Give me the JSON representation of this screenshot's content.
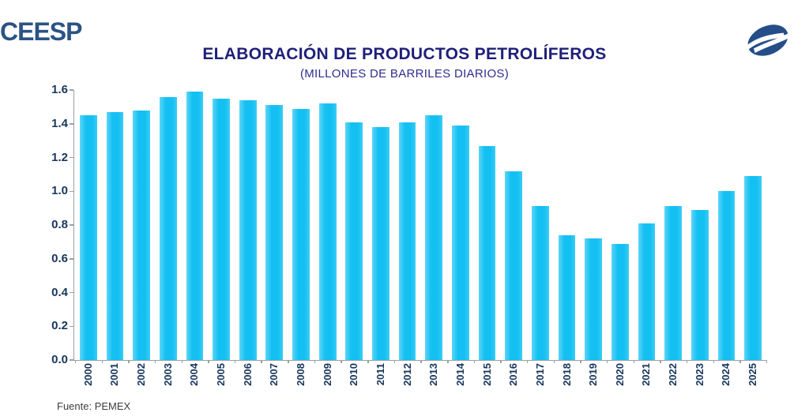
{
  "header": {
    "brand": "CEESP",
    "logo_icon": "ceesp-swirl-mark"
  },
  "chart_data": {
    "type": "bar",
    "title": "ELABORACIÓN DE PRODUCTOS PETROLÍFEROS",
    "subtitle": "(MILLONES DE BARRILES DIARIOS)",
    "categories": [
      "2000",
      "2001",
      "2002",
      "2003",
      "2004",
      "2005",
      "2006",
      "2007",
      "2008",
      "2009",
      "2010",
      "2011",
      "2012",
      "2013",
      "2014",
      "2015",
      "2016",
      "2017",
      "2018",
      "2019",
      "2020",
      "2021",
      "2022",
      "2023",
      "2024",
      "2025"
    ],
    "values": [
      1.45,
      1.47,
      1.48,
      1.56,
      1.59,
      1.55,
      1.54,
      1.51,
      1.49,
      1.52,
      1.41,
      1.38,
      1.41,
      1.45,
      1.39,
      1.27,
      1.12,
      0.91,
      0.74,
      0.72,
      0.69,
      0.81,
      0.91,
      0.89,
      1.0,
      1.09
    ],
    "ylim": [
      0,
      1.6
    ],
    "ytick_step": 0.2,
    "ytick_labels": [
      "0.0",
      "0.2",
      "0.4",
      "0.6",
      "0.8",
      "1.0",
      "1.2",
      "1.4",
      "1.6"
    ],
    "grid": false,
    "legend": null,
    "xlabel": "",
    "ylabel": ""
  },
  "colors": {
    "bar": "#14C0F2",
    "title": "#1F1F7A",
    "subtitle": "#2D2D8F",
    "axis_label": "#17365D",
    "axis_line": "#98A0A8",
    "brand": "#2B5385",
    "logo": "#254E88"
  },
  "footer": {
    "source": "Fuente: PEMEX"
  }
}
